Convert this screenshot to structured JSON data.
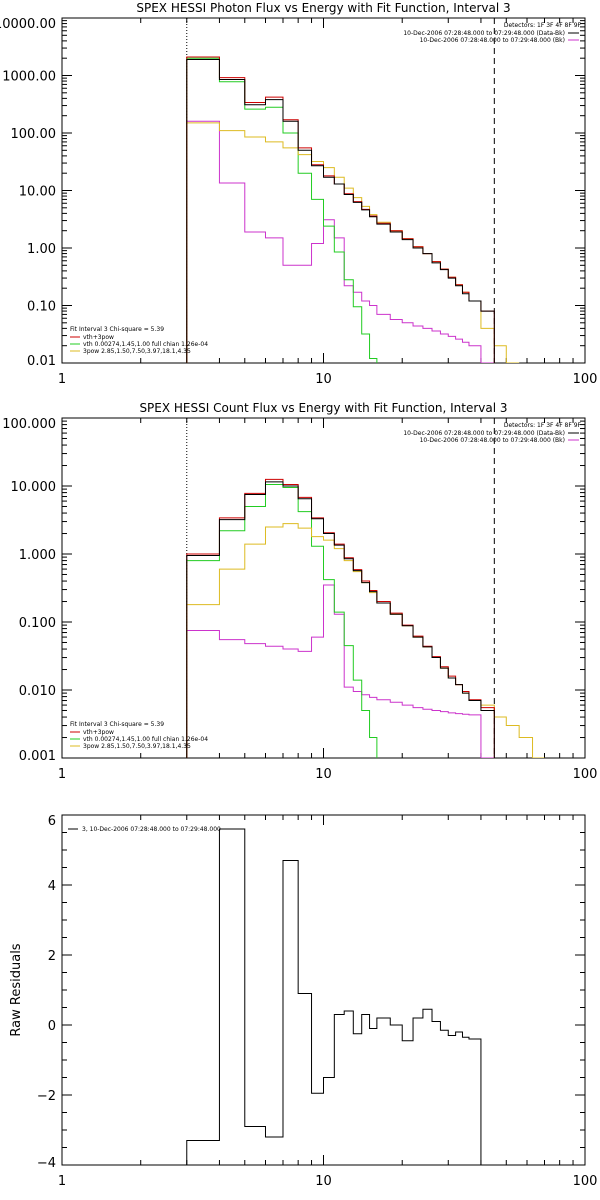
{
  "chart_data": [
    {
      "type": "line",
      "step": true,
      "title": "SPEX HESSI Photon Flux vs Energy with Fit Function, Interval 3",
      "xscale": "log",
      "yscale": "log",
      "xlim": [
        1,
        100
      ],
      "ylim": [
        0.01,
        10000
      ],
      "xticks": [
        1,
        10,
        100
      ],
      "xtick_labels": [
        "1",
        "10",
        "100"
      ],
      "yticks": [
        0.01,
        0.1,
        1,
        10,
        100,
        1000,
        10000
      ],
      "ytick_labels": [
        "0.01",
        "0.10",
        "1.00",
        "10.00",
        "100.00",
        "1000.00",
        "10000.00"
      ],
      "vlines": [
        {
          "x": 3,
          "style": "dotted"
        },
        {
          "x": 45,
          "style": "dashed"
        }
      ],
      "detector_label": "Detectors: 1F 3F 4F 8F 9F",
      "legend_top": [
        {
          "label": "10-Dec-2006 07:28:48.000 to 07:29:48.000 (Data-Bk)",
          "color": "#000000"
        },
        {
          "label": "10-Dec-2006 07:28:48.000 to 07:29:48.000 (Bk)",
          "color": "#cc33cc"
        }
      ],
      "fit_label": "Fit Interval 3   Chi-square = 5.39",
      "legend_bottom": [
        {
          "label": "vth+3pow",
          "color": "#cc0000"
        },
        {
          "label": "vth 0.00274,1.45,1.00  full chian 1.26e-04",
          "color": "#22cc22"
        },
        {
          "label": "3pow 2.85,1.50,7.50,3.97,18.1,4.35",
          "color": "#ddbb22"
        }
      ],
      "edges": [
        3,
        4,
        5,
        6,
        7,
        8,
        9,
        10,
        11,
        12,
        13,
        14,
        15,
        16,
        18,
        20,
        22,
        24,
        26,
        28,
        30,
        32,
        34,
        36,
        40,
        45,
        50,
        56
      ],
      "series": [
        {
          "name": "Data-Bk",
          "color": "#000000",
          "values": [
            1900,
            850,
            310,
            380,
            160,
            50,
            27,
            17,
            13,
            8.5,
            6.2,
            4.6,
            3.5,
            2.6,
            1.9,
            1.4,
            1.0,
            0.8,
            0.55,
            0.42,
            0.3,
            0.22,
            0.16,
            0.12,
            0.08
          ]
        },
        {
          "name": "Bk",
          "color": "#cc33cc",
          "values": [
            160,
            13.5,
            1.9,
            1.5,
            0.5,
            0.5,
            1.2,
            3.1,
            1.5,
            0.22,
            0.17,
            0.12,
            0.1,
            0.07,
            0.057,
            0.05,
            0.044,
            0.04,
            0.036,
            0.032,
            0.029,
            0.026,
            0.023,
            0.02,
            0.01
          ]
        },
        {
          "name": "vth+3pow",
          "color": "#cc0000",
          "values": [
            2100,
            920,
            340,
            420,
            170,
            55,
            28,
            18,
            13,
            8.8,
            6.4,
            4.7,
            3.6,
            2.7,
            2.0,
            1.45,
            1.05,
            0.8,
            0.58,
            0.43,
            0.31,
            0.23,
            0.17,
            0.12,
            0.08
          ]
        },
        {
          "name": "vth",
          "color": "#22cc22",
          "values": [
            2000,
            780,
            260,
            280,
            100,
            20,
            7,
            2.4,
            0.85,
            0.28,
            0.095,
            0.032,
            0.012
          ]
        },
        {
          "name": "3pow",
          "color": "#ddbb22",
          "values": [
            150,
            110,
            85,
            70,
            55,
            42,
            32,
            25,
            17,
            11,
            7.5,
            5.3,
            3.8,
            2.8,
            2.0,
            1.45,
            1.05,
            0.8,
            0.58,
            0.43,
            0.31,
            0.23,
            0.17,
            0.12,
            0.04,
            0.02,
            0.01
          ]
        }
      ]
    },
    {
      "type": "line",
      "step": true,
      "title": "SPEX HESSI Count Flux vs Energy with Fit Function, Interval 3",
      "xscale": "log",
      "yscale": "log",
      "xlim": [
        1,
        100
      ],
      "ylim": [
        0.001,
        100
      ],
      "xticks": [
        1,
        10,
        100
      ],
      "xtick_labels": [
        "1",
        "10",
        "100"
      ],
      "yticks": [
        0.001,
        0.01,
        0.1,
        1,
        10,
        100
      ],
      "ytick_labels": [
        "0.001",
        "0.010",
        "0.100",
        "1.000",
        "10.000",
        "100.000"
      ],
      "vlines": [
        {
          "x": 3,
          "style": "dotted"
        },
        {
          "x": 45,
          "style": "dashed"
        }
      ],
      "detector_label": "Detectors: 1F 3F 4F 8F 9F",
      "legend_top": [
        {
          "label": "10-Dec-2006 07:28:48.000 to 07:29:48.000 (Data-Bk)",
          "color": "#000000"
        },
        {
          "label": "10-Dec-2006 07:28:48.000 to 07:29:48.000 (Bk)",
          "color": "#cc33cc"
        }
      ],
      "fit_label": "Fit Interval 3   Chi-square = 5.39",
      "legend_bottom": [
        {
          "label": "vth+3pow",
          "color": "#cc0000"
        },
        {
          "label": "vth 0.00274,1.45,1.00  full chian 1.26e-04",
          "color": "#22cc22"
        },
        {
          "label": "3pow 2.85,1.50,7.50,3.97,18.1,4.35",
          "color": "#ddbb22"
        }
      ],
      "edges": [
        3,
        4,
        5,
        6,
        7,
        8,
        9,
        10,
        11,
        12,
        13,
        14,
        15,
        16,
        18,
        20,
        22,
        24,
        26,
        28,
        30,
        32,
        34,
        36,
        40,
        45,
        50,
        56,
        63,
        70
      ],
      "series": [
        {
          "name": "Data-Bk",
          "color": "#000000",
          "values": [
            0.95,
            3.2,
            7.5,
            11.5,
            10,
            6.5,
            3.3,
            2.0,
            1.35,
            0.85,
            0.57,
            0.38,
            0.28,
            0.19,
            0.13,
            0.088,
            0.06,
            0.043,
            0.03,
            0.021,
            0.015,
            0.012,
            0.009,
            0.007,
            0.005
          ]
        },
        {
          "name": "Bk",
          "color": "#cc33cc",
          "values": [
            0.075,
            0.055,
            0.048,
            0.044,
            0.04,
            0.037,
            0.06,
            0.35,
            0.13,
            0.011,
            0.0095,
            0.0085,
            0.0078,
            0.0072,
            0.0066,
            0.006,
            0.0055,
            0.0052,
            0.005,
            0.0048,
            0.0046,
            0.0045,
            0.0044,
            0.0043,
            0.001
          ]
        },
        {
          "name": "vth+3pow",
          "color": "#cc0000",
          "values": [
            1.0,
            3.4,
            7.8,
            12.5,
            10.5,
            6.8,
            3.4,
            2.05,
            1.4,
            0.88,
            0.59,
            0.4,
            0.29,
            0.2,
            0.135,
            0.09,
            0.062,
            0.044,
            0.031,
            0.022,
            0.016,
            0.012,
            0.0095,
            0.0072,
            0.0055
          ]
        },
        {
          "name": "vth",
          "color": "#22cc22",
          "values": [
            0.8,
            2.2,
            5.0,
            10.5,
            9.5,
            4.2,
            1.3,
            0.42,
            0.14,
            0.045,
            0.014,
            0.005,
            0.002
          ]
        },
        {
          "name": "3pow",
          "color": "#ddbb22",
          "values": [
            0.18,
            0.6,
            1.4,
            2.5,
            2.8,
            2.4,
            1.8,
            1.6,
            1.2,
            0.8,
            0.55,
            0.38,
            0.27,
            0.19,
            0.13,
            0.088,
            0.06,
            0.043,
            0.03,
            0.021,
            0.015,
            0.012,
            0.009,
            0.007,
            0.006,
            0.004,
            0.003,
            0.002,
            0.001
          ]
        }
      ]
    },
    {
      "type": "line",
      "step": true,
      "title": "",
      "ylabel": "Raw Residuals",
      "xscale": "log",
      "yscale": "linear",
      "xlim": [
        1,
        100
      ],
      "ylim": [
        -4,
        6
      ],
      "xticks": [
        1,
        10,
        100
      ],
      "xtick_labels": [
        "1",
        "10",
        "100"
      ],
      "yticks": [
        -4,
        -2,
        0,
        2,
        4,
        6
      ],
      "ytick_labels": [
        "−4",
        "−2",
        "0",
        "2",
        "4",
        "6"
      ],
      "legend_top": [
        {
          "label": "3, 10-Dec-2006 07:28:48.000 to 07:29:48.000",
          "color": "#000000"
        }
      ],
      "edges": [
        3,
        4,
        4.5,
        5,
        6,
        7,
        8,
        9,
        10,
        11,
        12,
        13,
        14,
        15,
        16,
        18,
        20,
        22,
        24,
        26,
        28,
        30,
        32,
        34,
        36,
        40,
        45
      ],
      "series": [
        {
          "name": "3, 10-Dec-2006 07:28:48.000 to 07:29:48.000",
          "color": "#000000",
          "values": [
            -3.3,
            5.6,
            5.6,
            -2.9,
            -3.2,
            4.7,
            0.9,
            -1.95,
            -1.5,
            0.3,
            0.4,
            -0.25,
            0.3,
            -0.1,
            0.2,
            0.0,
            -0.45,
            0.2,
            0.45,
            0.1,
            -0.15,
            -0.3,
            -0.2,
            -0.35,
            -0.4,
            -4
          ]
        }
      ]
    }
  ]
}
